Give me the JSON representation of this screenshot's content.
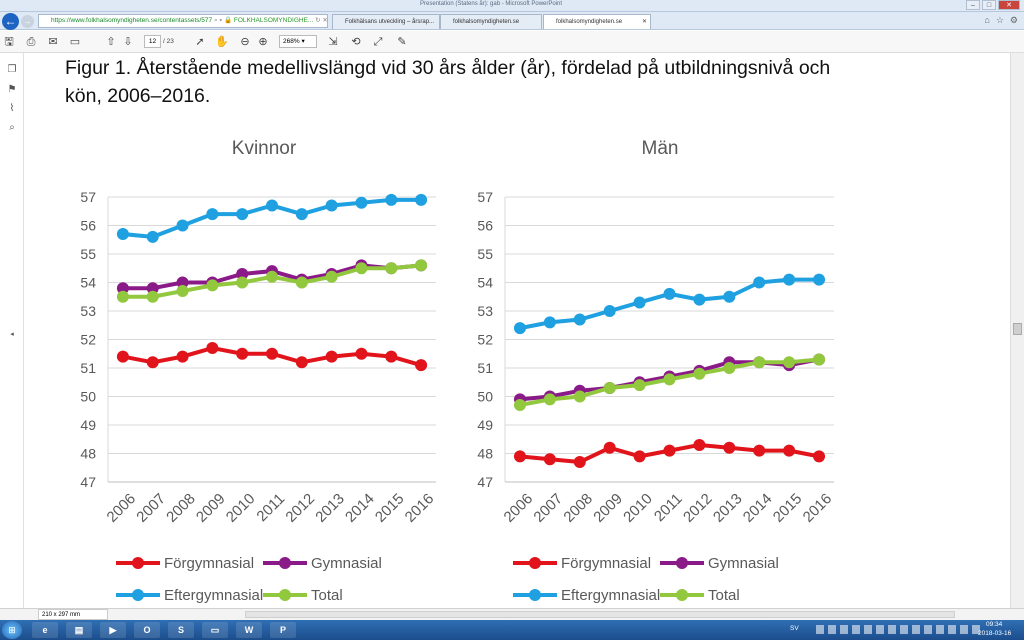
{
  "window": {
    "title": "Presentation (Statens år): gab - Microsoft PowerPoint"
  },
  "browser": {
    "url": "https://www.folkhalsomyndigheten.se/contentassets/577",
    "site_label": "FOLKHALSOMYNDIGHE...",
    "tabs": [
      {
        "label": "Folkhälsans utveckling – årsrap...",
        "active": false
      },
      {
        "label": "folkhalsomyndigheten.se",
        "active": false
      },
      {
        "label": "folkhalsomyndigheten.se",
        "active": true
      }
    ]
  },
  "pdf_toolbar": {
    "page_current": "12",
    "page_total": "/ 23",
    "zoom": "268%"
  },
  "statusbar": {
    "page_size": "210 x 297 mm"
  },
  "taskbar": {
    "language": "SV",
    "time": "09:34",
    "date": "2018-03-16"
  },
  "figure": {
    "title": "Figur 1. Återstående medellivslängd vid 30 års ålder (år), fördelad på utbildningsnivå och kön, 2006–2016."
  },
  "colors": {
    "forgymnasial": "#e1141c",
    "gymnasial": "#8b1a89",
    "eftergymnasial": "#1fa0e0",
    "total": "#92c83e",
    "grid": "#d9d9d9",
    "axis_text": "#595959"
  },
  "chart_data": [
    {
      "type": "line",
      "title": "Kvinnor",
      "xlabel": "",
      "ylabel": "",
      "categories": [
        "2006",
        "2007",
        "2008",
        "2009",
        "2010",
        "2011",
        "2012",
        "2013",
        "2014",
        "2015",
        "2016"
      ],
      "ylim": [
        47,
        57
      ],
      "yticks": [
        47,
        48,
        49,
        50,
        51,
        52,
        53,
        54,
        55,
        56,
        57
      ],
      "grid": true,
      "legend_position": "bottom",
      "series": [
        {
          "name": "Förgymnasial",
          "color_key": "forgymnasial",
          "values": [
            51.4,
            51.2,
            51.4,
            51.7,
            51.5,
            51.5,
            51.2,
            51.4,
            51.5,
            51.4,
            51.1
          ]
        },
        {
          "name": "Gymnasial",
          "color_key": "gymnasial",
          "values": [
            53.8,
            53.8,
            54.0,
            54.0,
            54.3,
            54.4,
            54.1,
            54.3,
            54.6,
            54.5,
            54.6
          ]
        },
        {
          "name": "Eftergymnasial",
          "color_key": "eftergymnasial",
          "values": [
            55.7,
            55.6,
            56.0,
            56.4,
            56.4,
            56.7,
            56.4,
            56.7,
            56.8,
            56.9,
            56.9
          ]
        },
        {
          "name": "Total",
          "color_key": "total",
          "values": [
            53.5,
            53.5,
            53.7,
            53.9,
            54.0,
            54.2,
            54.0,
            54.2,
            54.5,
            54.5,
            54.6
          ]
        }
      ]
    },
    {
      "type": "line",
      "title": "Män",
      "xlabel": "",
      "ylabel": "",
      "categories": [
        "2006",
        "2007",
        "2008",
        "2009",
        "2010",
        "2011",
        "2012",
        "2013",
        "2014",
        "2015",
        "2016"
      ],
      "ylim": [
        47,
        57
      ],
      "yticks": [
        47,
        48,
        49,
        50,
        51,
        52,
        53,
        54,
        55,
        56,
        57
      ],
      "grid": true,
      "legend_position": "bottom",
      "series": [
        {
          "name": "Förgymnasial",
          "color_key": "forgymnasial",
          "values": [
            47.9,
            47.8,
            47.7,
            48.2,
            47.9,
            48.1,
            48.3,
            48.2,
            48.1,
            48.1,
            47.9
          ]
        },
        {
          "name": "Gymnasial",
          "color_key": "gymnasial",
          "values": [
            49.9,
            50.0,
            50.2,
            50.3,
            50.5,
            50.7,
            50.9,
            51.2,
            51.2,
            51.1,
            51.3
          ]
        },
        {
          "name": "Eftergymnasial",
          "color_key": "eftergymnasial",
          "values": [
            52.4,
            52.6,
            52.7,
            53.0,
            53.3,
            53.6,
            53.4,
            53.5,
            54.0,
            54.1,
            54.1
          ]
        },
        {
          "name": "Total",
          "color_key": "total",
          "values": [
            49.7,
            49.9,
            50.0,
            50.3,
            50.4,
            50.6,
            50.8,
            51.0,
            51.2,
            51.2,
            51.3
          ]
        }
      ]
    }
  ]
}
